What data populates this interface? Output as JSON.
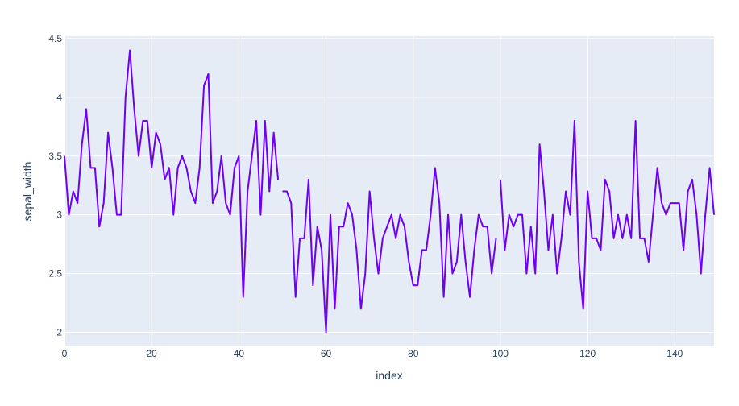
{
  "chart_data": {
    "type": "line",
    "xlabel": "index",
    "ylabel": "sepal_width",
    "xlim": [
      0,
      149
    ],
    "ylim": [
      1.88,
      4.52
    ],
    "x_ticks": [
      0,
      20,
      40,
      60,
      80,
      100,
      120,
      140
    ],
    "y_ticks": [
      2,
      2.5,
      3,
      3.5,
      4,
      4.5
    ],
    "grid": true,
    "legend": "none",
    "colors": {
      "plot_bg": "#e5ecf6",
      "grid": "#ffffff",
      "line": "#6f00f5",
      "text": "#2a3f5f"
    },
    "series": [
      {
        "segments": [
          {
            "x": [
              0,
              1,
              2,
              3,
              4,
              5,
              6,
              7,
              8,
              9,
              10,
              11,
              12,
              13,
              14,
              15,
              16,
              17,
              18,
              19,
              20,
              21,
              22,
              23,
              24,
              25,
              26,
              27,
              28,
              29,
              30,
              31,
              32,
              33,
              34,
              35,
              36,
              37,
              38,
              39,
              40,
              41,
              42,
              43,
              44,
              45,
              46,
              47,
              48,
              49
            ],
            "y": [
              3.5,
              3.0,
              3.2,
              3.1,
              3.6,
              3.9,
              3.4,
              3.4,
              2.9,
              3.1,
              3.7,
              3.4,
              3.0,
              3.0,
              4.0,
              4.4,
              3.9,
              3.5,
              3.8,
              3.8,
              3.4,
              3.7,
              3.6,
              3.3,
              3.4,
              3.0,
              3.4,
              3.5,
              3.4,
              3.2,
              3.1,
              3.4,
              4.1,
              4.2,
              3.1,
              3.2,
              3.5,
              3.1,
              3.0,
              3.4,
              3.5,
              2.3,
              3.2,
              3.5,
              3.8,
              3.0,
              3.8,
              3.2,
              3.7,
              3.3
            ]
          },
          {
            "x": [
              50,
              51,
              52,
              53,
              54,
              55,
              56,
              57,
              58,
              59,
              60,
              61,
              62,
              63,
              64,
              65,
              66,
              67,
              68,
              69,
              70,
              71,
              72,
              73,
              74,
              75,
              76,
              77,
              78,
              79,
              80,
              81,
              82,
              83,
              84,
              85,
              86,
              87,
              88,
              89,
              90,
              91,
              92,
              93,
              94,
              95,
              96,
              97,
              98,
              99
            ],
            "y": [
              3.2,
              3.2,
              3.1,
              2.3,
              2.8,
              2.8,
              3.3,
              2.4,
              2.9,
              2.7,
              2.0,
              3.0,
              2.2,
              2.9,
              2.9,
              3.1,
              3.0,
              2.7,
              2.2,
              2.5,
              3.2,
              2.8,
              2.5,
              2.8,
              2.9,
              3.0,
              2.8,
              3.0,
              2.9,
              2.6,
              2.4,
              2.4,
              2.7,
              2.7,
              3.0,
              3.4,
              3.1,
              2.3,
              3.0,
              2.5,
              2.6,
              3.0,
              2.6,
              2.3,
              2.7,
              3.0,
              2.9,
              2.9,
              2.5,
              2.8
            ]
          },
          {
            "x": [
              100,
              101,
              102,
              103,
              104,
              105,
              106,
              107,
              108,
              109,
              110,
              111,
              112,
              113,
              114,
              115,
              116,
              117,
              118,
              119,
              120,
              121,
              122,
              123,
              124,
              125,
              126,
              127,
              128,
              129,
              130,
              131,
              132,
              133,
              134,
              135,
              136,
              137,
              138,
              139,
              140,
              141,
              142,
              143,
              144,
              145,
              146,
              147,
              148,
              149
            ],
            "y": [
              3.3,
              2.7,
              3.0,
              2.9,
              3.0,
              3.0,
              2.5,
              2.9,
              2.5,
              3.6,
              3.2,
              2.7,
              3.0,
              2.5,
              2.8,
              3.2,
              3.0,
              3.8,
              2.6,
              2.2,
              3.2,
              2.8,
              2.8,
              2.7,
              3.3,
              3.2,
              2.8,
              3.0,
              2.8,
              3.0,
              2.8,
              3.8,
              2.8,
              2.8,
              2.6,
              3.0,
              3.4,
              3.1,
              3.0,
              3.1,
              3.1,
              3.1,
              2.7,
              3.2,
              3.3,
              3.0,
              2.5,
              3.0,
              3.4,
              3.0
            ]
          }
        ]
      }
    ]
  }
}
